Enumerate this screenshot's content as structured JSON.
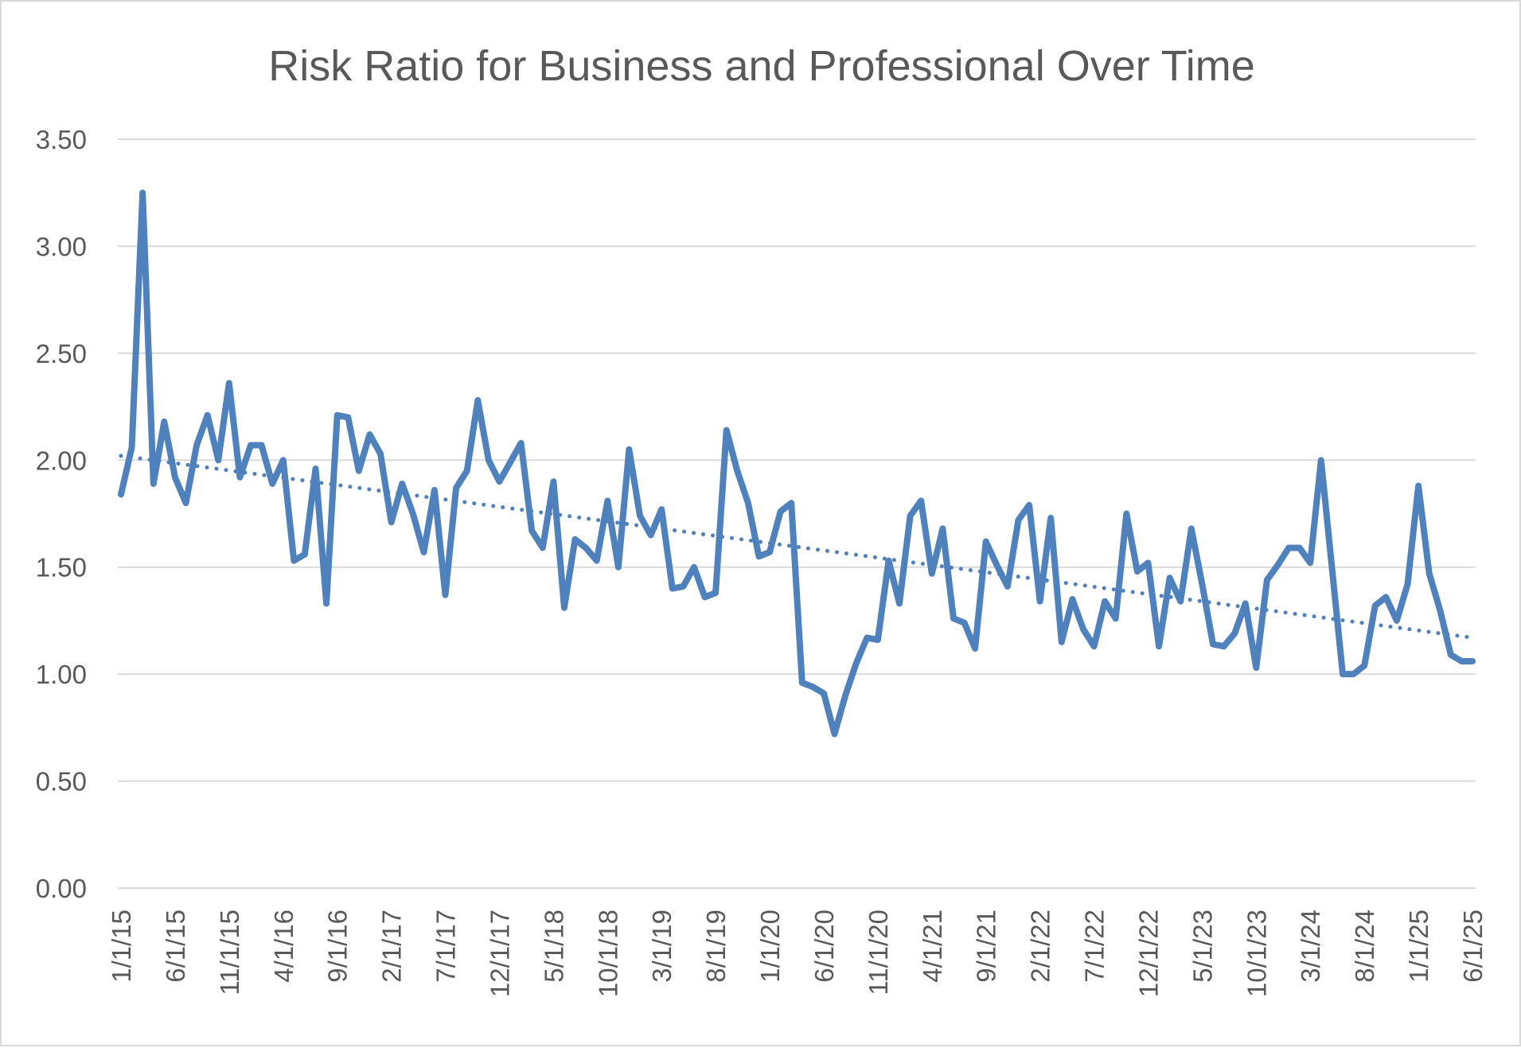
{
  "chart_data": {
    "type": "line",
    "title": "Risk Ratio for Business and Professional Over Time",
    "xlabel": "",
    "ylabel": "",
    "ylim": [
      0,
      3.5
    ],
    "y_ticks": [
      "0.00",
      "0.50",
      "1.00",
      "1.50",
      "2.00",
      "2.50",
      "3.00",
      "3.50"
    ],
    "x_tick_labels": [
      "1/1/15",
      "6/1/15",
      "11/1/15",
      "4/1/16",
      "9/1/16",
      "2/1/17",
      "7/1/17",
      "12/1/17",
      "5/1/18",
      "10/1/18",
      "3/1/19",
      "8/1/19",
      "1/1/20",
      "6/1/20",
      "11/1/20",
      "4/1/21",
      "9/1/21",
      "2/1/22",
      "7/1/22",
      "12/1/22",
      "5/1/23",
      "10/1/23",
      "3/1/24",
      "8/1/24",
      "1/1/25",
      "6/1/25"
    ],
    "grid": true,
    "legend": "none",
    "colors": {
      "series": "#4f81bd",
      "grid": "#d9d9d9",
      "text": "#595959"
    },
    "series": [
      {
        "values": [
          1.84,
          2.06,
          3.25,
          1.89,
          2.18,
          1.92,
          1.8,
          2.07,
          2.21,
          2.0,
          2.36,
          1.92,
          2.07,
          2.07,
          1.89,
          2.0,
          1.53,
          1.56,
          1.96,
          1.33,
          2.21,
          2.2,
          1.95,
          2.12,
          2.03,
          1.71,
          1.89,
          1.75,
          1.57,
          1.86,
          1.37,
          1.87,
          1.95,
          2.28,
          2.0,
          1.9,
          1.99,
          2.08,
          1.67,
          1.59,
          1.9,
          1.31,
          1.63,
          1.59,
          1.53,
          1.81,
          1.5,
          2.05,
          1.74,
          1.65,
          1.77,
          1.4,
          1.41,
          1.5,
          1.36,
          1.38,
          2.14,
          1.95,
          1.8,
          1.55,
          1.57,
          1.76,
          1.8,
          0.96,
          0.94,
          0.91,
          0.72,
          0.9,
          1.05,
          1.17,
          1.16,
          1.53,
          1.33,
          1.74,
          1.81,
          1.47,
          1.68,
          1.26,
          1.24,
          1.12,
          1.62,
          1.51,
          1.41,
          1.72,
          1.79,
          1.34,
          1.73,
          1.15,
          1.35,
          1.21,
          1.13,
          1.34,
          1.26,
          1.75,
          1.48,
          1.52,
          1.13,
          1.45,
          1.34,
          1.68,
          1.42,
          1.14,
          1.13,
          1.19,
          1.33,
          1.03,
          1.44,
          1.51,
          1.59,
          1.59,
          1.52,
          2.0,
          1.5,
          1.0,
          1.0,
          1.04,
          1.32,
          1.36,
          1.25,
          1.42,
          1.88,
          1.47,
          1.3,
          1.09,
          1.06,
          1.06
        ]
      }
    ],
    "trendline": {
      "type": "linear",
      "style": "dotted",
      "start_value": 2.02,
      "end_value": 1.17
    }
  }
}
